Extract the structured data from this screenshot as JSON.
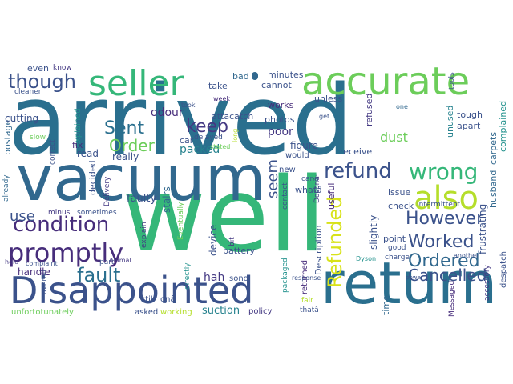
{
  "colors": {
    "teal_dark": "#2a6f8e",
    "blue_dark": "#31688e",
    "navy": "#3b528b",
    "indigo": "#443983",
    "purple": "#472d7b",
    "green": "#35b779",
    "light_green": "#6ccd5a",
    "lime": "#b5de2b",
    "yellow": "#d8e219",
    "teal": "#21918c",
    "seafoam": "#22a884",
    "sky": "#26828e",
    "background": "#ffffff"
  },
  "words": {
    "arrived": "arrived",
    "well": "well",
    "vacuum": "vacuum",
    "return": "return",
    "disappointed": "Disappointed",
    "accurate": "accurate",
    "seller": "seller",
    "though": "though",
    "also": "also",
    "wrong": "wrong",
    "refund": "refund",
    "promptly": "promptly",
    "condition": "condition",
    "fault": "fault",
    "worked": "Worked",
    "ordered": "Ordered",
    "cancelled": "Cancelled",
    "however": "However",
    "refunded": "Refunded",
    "seem": "seem",
    "use": "use",
    "sent": "Sent",
    "order": "Order",
    "keep": "keep",
    "odour": "odour",
    "packed": "packed",
    "poor": "poor",
    "dust": "dust",
    "faulty": "faulty",
    "stairs": "stairs",
    "device": "device",
    "battery": "battery",
    "suction": "suction",
    "hah": "hah",
    "fix": "fix",
    "cutting": "cutting",
    "postage": "postage",
    "even": "even",
    "know": "know",
    "cleaner": "cleaner",
    "read": "read",
    "really": "really",
    "decided": "decided",
    "explained": "explained",
    "minus": "minus",
    "sometimes": "sometimes",
    "complaint": "complaint",
    "hold": "hold",
    "handle": "handle",
    "unfortotunately": "unfortotunately",
    "asked": "asked",
    "working": "working",
    "policy": "policy",
    "fair": "fair",
    "thata": "thatâ",
    "still": "still",
    "ona": "onâ",
    "sono": "sono",
    "returned": "returned",
    "bit": "bit",
    "part": "part",
    "explain": "explain",
    "directly": "directly",
    "eventually": "Eventually",
    "delivery": "Delivery",
    "car": "car",
    "delayed": "delayed",
    "attacatch": "attacatch",
    "bad": "bad",
    "take": "take",
    "minutes": "minutes",
    "cannot": "cannot",
    "works": "works",
    "unless": "unless",
    "photos": "photos",
    "figure": "figure",
    "would": "would",
    "new": "new",
    "cana": "canâ",
    "whata": "whatâ",
    "contact": "contact",
    "receive": "receive",
    "description": "Description",
    "useful": "useful",
    "refused": "refused",
    "get": "get",
    "tough": "tough",
    "unused": "unused",
    "apart": "apart",
    "issue": "issue",
    "check": "check",
    "intermittent": "Intermittent",
    "slightly": "slightly",
    "point": "point",
    "good": "good",
    "charge": "charge",
    "time": "time",
    "frustrating": "frustrating",
    "husband": "husband",
    "carpets": "carpets",
    "complained": "complained",
    "another": "another",
    "despatch": "despatch",
    "accessory": "accessory",
    "messaged": "Messaged",
    "response": "response",
    "dyson": "Dyson",
    "one": "one",
    "tools": "tools",
    "took": "took",
    "week": "week",
    "slow": "slow",
    "correct": "correct",
    "already": "already",
    "animal": "Animal",
    "long": "long",
    "stated": "stated",
    "doesna": "Doesnâ",
    "packaged": "packaged",
    "power": "power",
    "overall": "overall"
  }
}
